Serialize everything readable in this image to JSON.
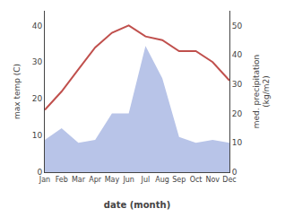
{
  "chart_data": {
    "type": "line",
    "xlabel": "date (month)",
    "ylabel": "max temp (C)",
    "y2label": "med. precipitation\n(kg/m2)",
    "categories": [
      "Jan",
      "Feb",
      "Mar",
      "Apr",
      "May",
      "Jun",
      "Jul",
      "Aug",
      "Sep",
      "Oct",
      "Nov",
      "Dec"
    ],
    "series": [
      {
        "type": "area",
        "axis": "y2",
        "color": "#b8c4e8",
        "values": [
          11,
          15,
          10,
          11,
          20,
          20,
          43,
          32,
          12,
          10,
          11,
          10
        ]
      },
      {
        "type": "line",
        "color": "#c0504d",
        "values": [
          17,
          22,
          28,
          34,
          38,
          40,
          37,
          36,
          33,
          33,
          30,
          25
        ]
      }
    ],
    "ylim": [
      0,
      44
    ],
    "yticks": [
      0,
      10,
      20,
      30,
      40
    ],
    "y2lim": [
      0,
      55
    ],
    "y2ticks": [
      0,
      10,
      20,
      30,
      40,
      50
    ],
    "grid": false
  }
}
